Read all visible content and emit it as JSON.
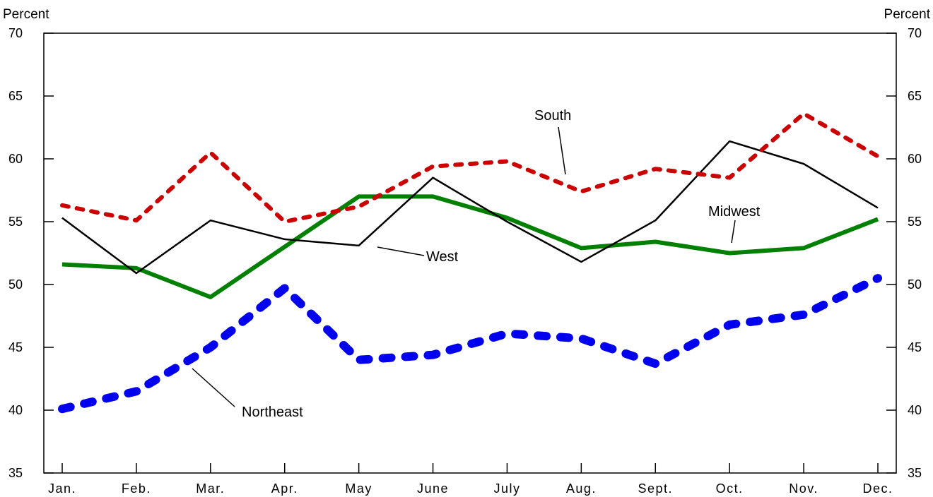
{
  "chart_data": {
    "type": "line",
    "title": "",
    "left_unit": "Percent",
    "right_unit": "Percent",
    "categories": [
      "Jan.",
      "Feb.",
      "Mar.",
      "Apr.",
      "May",
      "June",
      "July",
      "Aug.",
      "Sept.",
      "Oct.",
      "Nov.",
      "Dec."
    ],
    "y_ticks": [
      35,
      40,
      45,
      50,
      55,
      60,
      65,
      70
    ],
    "ylim": [
      35,
      70
    ],
    "grid": false,
    "series": [
      {
        "name": "South",
        "color": "#cc0000",
        "style": "dotted",
        "values": [
          56.3,
          55.1,
          60.5,
          55.0,
          56.2,
          59.4,
          59.8,
          57.4,
          59.2,
          58.5,
          63.6,
          60.2
        ]
      },
      {
        "name": "West",
        "color": "#000000",
        "style": "solid-thin",
        "values": [
          55.3,
          50.9,
          55.1,
          53.6,
          53.1,
          58.5,
          55.0,
          51.8,
          55.1,
          61.4,
          59.6,
          56.1
        ]
      },
      {
        "name": "Midwest",
        "color": "#008000",
        "style": "solid-thick",
        "values": [
          51.6,
          51.3,
          49.0,
          53.0,
          57.0,
          57.0,
          55.3,
          52.9,
          53.4,
          52.5,
          52.9,
          55.2
        ]
      },
      {
        "name": "Northeast",
        "color": "#0000ee",
        "style": "dotted-thick",
        "values": [
          40.1,
          41.5,
          45.0,
          49.7,
          44.0,
          44.4,
          46.1,
          45.7,
          43.7,
          46.8,
          47.6,
          50.5
        ]
      }
    ],
    "annotations": {
      "South": "South",
      "West": "West",
      "Midwest": "Midwest",
      "Northeast": "Northeast"
    }
  }
}
